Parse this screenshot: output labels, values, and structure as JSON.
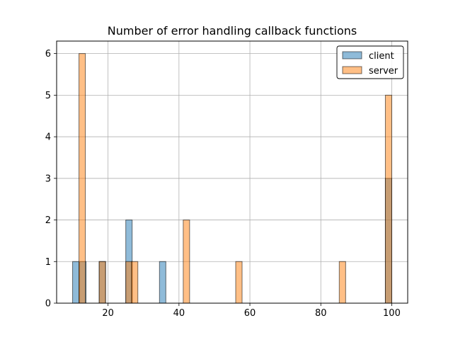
{
  "chart_data": {
    "type": "bar",
    "title": "Number of error handling callback functions",
    "xlabel": "",
    "ylabel": "",
    "xlim": [
      5.5,
      104.5
    ],
    "ylim": [
      0,
      6.3
    ],
    "xticks": [
      20,
      40,
      60,
      80,
      100
    ],
    "yticks": [
      0,
      1,
      2,
      3,
      4,
      5,
      6
    ],
    "grid": true,
    "legend_position": "top-right",
    "bin_width": 1.8,
    "series": [
      {
        "name": "client",
        "color": "#1f77b4",
        "bars": [
          {
            "x": 10.0,
            "count": 1
          },
          {
            "x": 12.0,
            "count": 1
          },
          {
            "x": 17.5,
            "count": 1
          },
          {
            "x": 25.0,
            "count": 2
          },
          {
            "x": 34.5,
            "count": 1
          },
          {
            "x": 98.2,
            "count": 3
          }
        ]
      },
      {
        "name": "server",
        "color": "#ff7f0e",
        "bars": [
          {
            "x": 11.8,
            "count": 6
          },
          {
            "x": 17.5,
            "count": 1
          },
          {
            "x": 25.0,
            "count": 1
          },
          {
            "x": 26.6,
            "count": 1
          },
          {
            "x": 41.2,
            "count": 2
          },
          {
            "x": 56.0,
            "count": 1
          },
          {
            "x": 85.2,
            "count": 1
          },
          {
            "x": 98.2,
            "count": 5
          }
        ]
      }
    ]
  }
}
